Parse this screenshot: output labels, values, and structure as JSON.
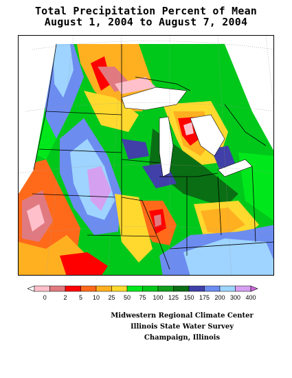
{
  "title": {
    "line1": "Total Precipitation Percent of Mean",
    "line2": "August 1, 2004 to August 7, 2004"
  },
  "legend": {
    "items": [
      {
        "label": "0",
        "color": "#ffc0cb"
      },
      {
        "label": "2",
        "color": "#e07a80"
      },
      {
        "label": "5",
        "color": "#ff0000"
      },
      {
        "label": "10",
        "color": "#ff6a1a"
      },
      {
        "label": "25",
        "color": "#ffb020"
      },
      {
        "label": "50",
        "color": "#ffd92e"
      },
      {
        "label": "75",
        "color": "#00e81c"
      },
      {
        "label": "100",
        "color": "#00c81a"
      },
      {
        "label": "125",
        "color": "#109e1c"
      },
      {
        "label": "150",
        "color": "#0a6e14"
      },
      {
        "label": "175",
        "color": "#4040a8"
      },
      {
        "label": "200",
        "color": "#6c8cf0"
      },
      {
        "label": "300",
        "color": "#9ed4ff"
      },
      {
        "label": "400",
        "color": "#d6a0f0"
      }
    ],
    "below_color": "#ffffff",
    "above_color": "#cc66dd"
  },
  "credits": {
    "line1": "Midwestern Regional Climate Center",
    "line2": "Illinois State Water Survey",
    "line3": "Champaign, Illinois"
  },
  "colors": {
    "lake": "#ffffff",
    "grid": "#9a9a9a",
    "border": "#000000"
  }
}
